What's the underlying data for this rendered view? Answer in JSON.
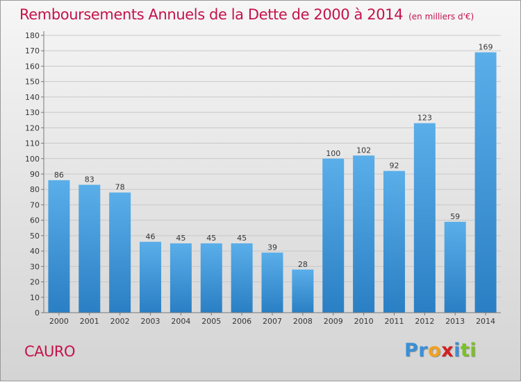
{
  "header": {
    "title": "Remboursements Annuels de la Dette de 2000 à 2014",
    "unit": "(en milliers d'€)"
  },
  "footer": {
    "town": "CAURO",
    "logo_letters": [
      {
        "ch": "P",
        "color": "#3a8fd6"
      },
      {
        "ch": "r",
        "color": "#3a8fd6"
      },
      {
        "ch": "o",
        "color": "#f0a020"
      },
      {
        "ch": "x",
        "color": "#d42020"
      },
      {
        "ch": "i",
        "color": "#3a8fd6"
      },
      {
        "ch": "t",
        "color": "#7cbf2a"
      },
      {
        "ch": "i",
        "color": "#7cbf2a"
      }
    ]
  },
  "colors": {
    "title": "#c4124b",
    "bar_top": "#5aaee9",
    "bar_bottom": "#2a7fc4"
  },
  "chart_data": {
    "type": "bar",
    "title": "Remboursements Annuels de la Dette de 2000 à 2014",
    "categories": [
      "2000",
      "2001",
      "2002",
      "2003",
      "2004",
      "2005",
      "2006",
      "2007",
      "2008",
      "2009",
      "2010",
      "2011",
      "2012",
      "2013",
      "2014"
    ],
    "values": [
      86,
      83,
      78,
      46,
      45,
      45,
      45,
      39,
      28,
      100,
      102,
      92,
      123,
      59,
      169
    ],
    "ylim": [
      0,
      180
    ],
    "yticks": [
      0,
      10,
      20,
      30,
      40,
      50,
      60,
      70,
      80,
      90,
      100,
      110,
      120,
      130,
      140,
      150,
      160,
      170,
      180
    ],
    "grid": true
  }
}
